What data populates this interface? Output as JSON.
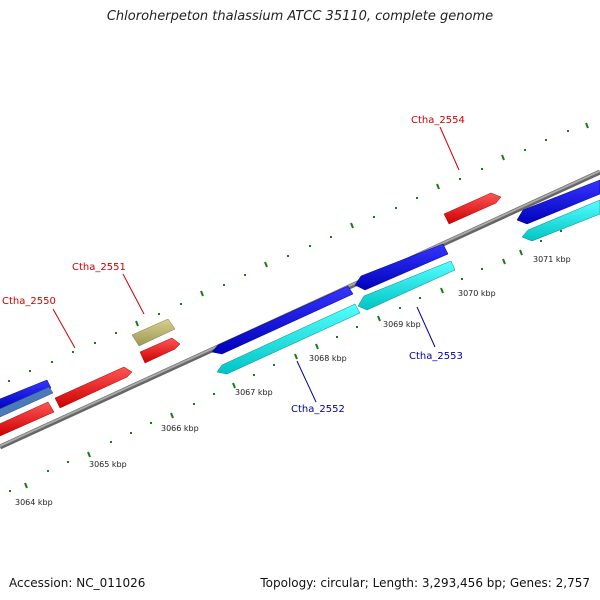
{
  "title": "Chloroherpeton thalassium ATCC 35110, complete genome",
  "footer": {
    "accession": "Accession: NC_011026",
    "summary": "Topology: circular; Length: 3,293,456 bp; Genes: 2,757"
  },
  "ticks": [
    {
      "label": "3064 kbp"
    },
    {
      "label": "3065 kbp"
    },
    {
      "label": "3066 kbp"
    },
    {
      "label": "3067 kbp"
    },
    {
      "label": "3068 kbp"
    },
    {
      "label": "3069 kbp"
    },
    {
      "label": "3070 kbp"
    },
    {
      "label": "3071 kbp"
    }
  ],
  "gene_labels": [
    {
      "text": "Ctha_2550",
      "color": "#cc0000"
    },
    {
      "text": "Ctha_2551",
      "color": "#cc0000"
    },
    {
      "text": "Ctha_2554",
      "color": "#cc0000"
    },
    {
      "text": "Ctha_2552",
      "color": "#000099"
    },
    {
      "text": "Ctha_2553",
      "color": "#000099"
    }
  ],
  "colors": {
    "forward_gene": "#ee1111",
    "other_gene": "#b8b070",
    "reverse_gene": "#1111dd",
    "reverse_cds": "#00e5e5",
    "backbone": "#8a8a8a",
    "tick": "#1a7a1a"
  }
}
